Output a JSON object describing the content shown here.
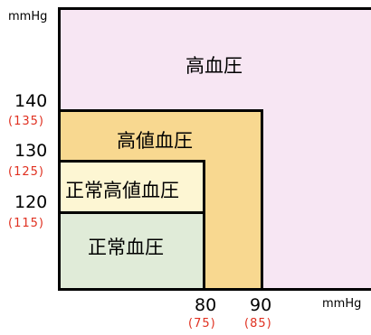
{
  "chart_data": {
    "type": "area",
    "title": "",
    "y_unit": "mmHg",
    "x_unit": "mmHg",
    "y_ticks": [
      {
        "value": 140,
        "label": "140",
        "alt_label": "(135)"
      },
      {
        "value": 130,
        "label": "130",
        "alt_label": "(125)"
      },
      {
        "value": 120,
        "label": "120",
        "alt_label": "(115)"
      }
    ],
    "x_ticks": [
      {
        "value": 80,
        "label": "80",
        "alt_label": "(75)"
      },
      {
        "value": 90,
        "label": "90",
        "alt_label": "(85)"
      }
    ],
    "zones": [
      {
        "name": "高血圧",
        "color": "#f7e6f3",
        "systolic_min": 140,
        "diastolic_min": 90
      },
      {
        "name": "高値血圧",
        "color": "#f8d890",
        "systolic_range": [
          130,
          139
        ],
        "diastolic_range": [
          80,
          89
        ]
      },
      {
        "name": "正常高値血圧",
        "color": "#fdf6d3",
        "systolic_range": [
          120,
          129
        ],
        "diastolic_below": 80
      },
      {
        "name": "正常血圧",
        "color": "#e0ebd8",
        "systolic_below": 120,
        "diastolic_below": 80
      }
    ]
  }
}
